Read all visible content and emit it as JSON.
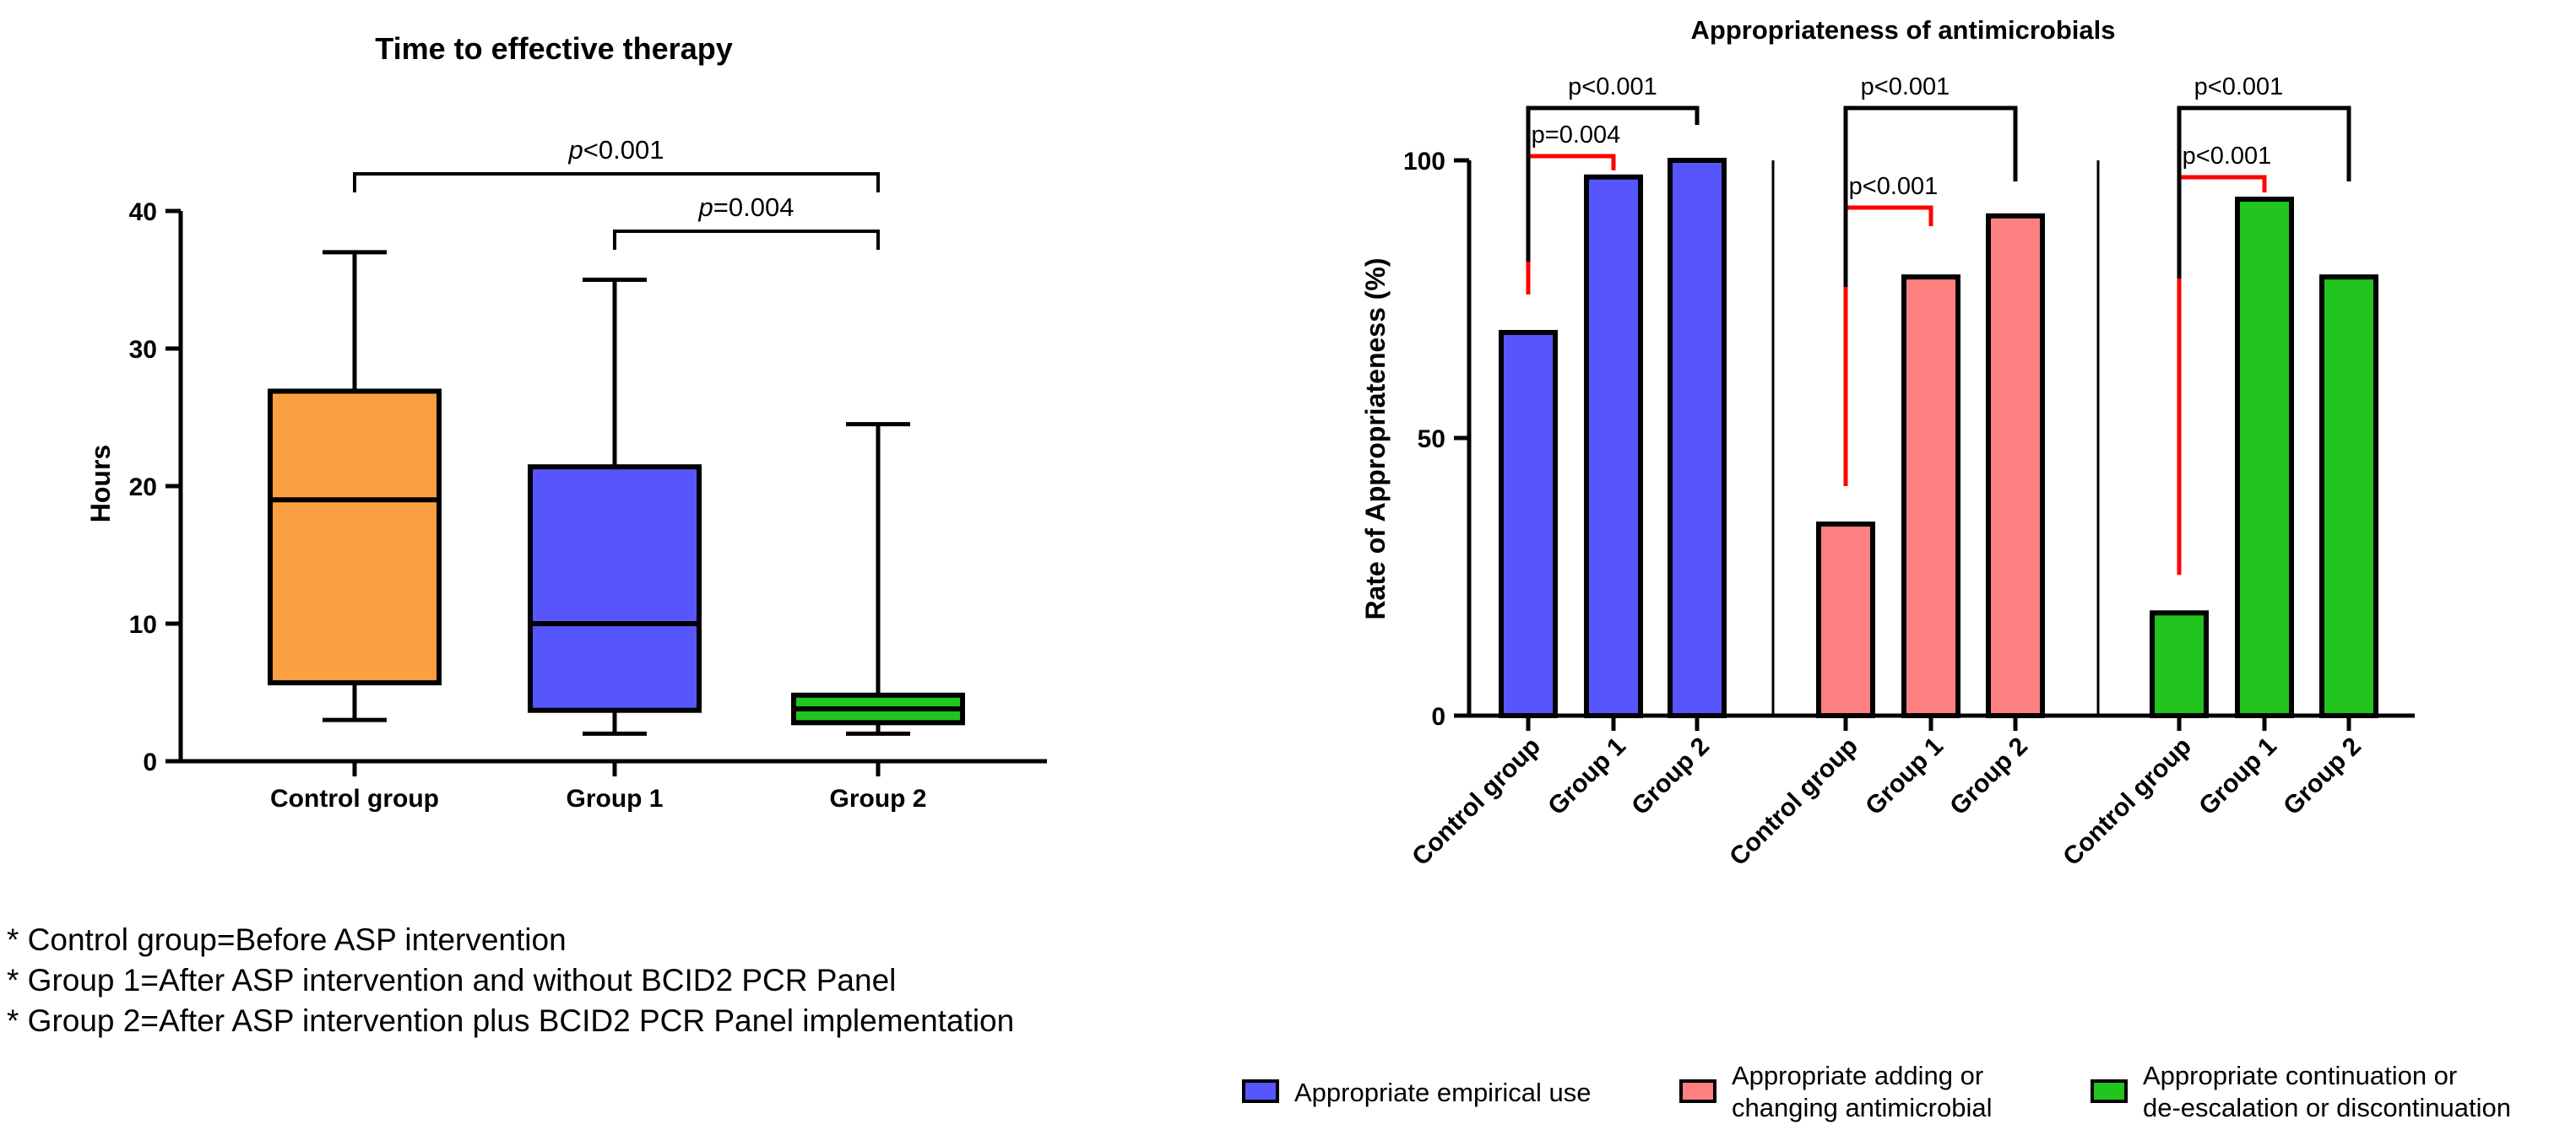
{
  "chart_data": [
    {
      "type": "box",
      "title": "Time to effective therapy",
      "xlabel": "",
      "ylabel": "Hours",
      "ylim": [
        0,
        40
      ],
      "yticks": [
        "0",
        "10",
        "20",
        "30",
        "40"
      ],
      "ytick_values": [
        0,
        10,
        20,
        30,
        40
      ],
      "categories": [
        "Control group",
        "Group 1",
        "Group 2"
      ],
      "boxes": [
        {
          "name": "Control group",
          "min": 3,
          "q1": 5.7,
          "median": 19,
          "q3": 26.9,
          "max": 37,
          "color": "#FBA040"
        },
        {
          "name": "Group 1",
          "min": 2,
          "q1": 3.7,
          "median": 10,
          "q3": 21.4,
          "max": 35,
          "color": "#5756FD"
        },
        {
          "name": "Group 2",
          "min": 2,
          "q1": 2.8,
          "median": 3.8,
          "q3": 4.8,
          "max": 24.5,
          "color": "#22C41E"
        }
      ],
      "comparisons": [
        {
          "from": 0,
          "to": 2,
          "p_symbol": "p",
          "p_value": "<0.001",
          "color": "#000000",
          "level": 2
        },
        {
          "from": 1,
          "to": 2,
          "p_symbol": "p",
          "p_value": "=0.004",
          "color": "#000000",
          "level": 1
        }
      ]
    },
    {
      "type": "bar",
      "title": "Appropriateness of antimicrobials",
      "xlabel": "",
      "ylabel": "Rate of Appropriateness (%)",
      "ylim": [
        0,
        100
      ],
      "yticks": [
        "0",
        "50",
        "100"
      ],
      "ytick_values": [
        0,
        50,
        100
      ],
      "categories": [
        "Control group",
        "Group 1",
        "Group 2"
      ],
      "series": [
        {
          "name": "Appropriate empirical use",
          "color": "#5756FD",
          "values": [
            69,
            97,
            100
          ]
        },
        {
          "name": "Appropriate adding or changing antimicrobial",
          "color": "#FF8080",
          "values": [
            34.5,
            79,
            90
          ]
        },
        {
          "name": "Appropriate continuation or de-escalation or discontinuation",
          "color": "#22C41E",
          "values": [
            18.5,
            93,
            79
          ]
        }
      ],
      "comparisons": [
        {
          "group": 0,
          "from": 0,
          "to": 1,
          "label": "p=0.004",
          "color": "#FF0000",
          "level": 1
        },
        {
          "group": 0,
          "from": 0,
          "to": 2,
          "label": "p<0.001",
          "color": "#000000",
          "level": 2
        },
        {
          "group": 1,
          "from": 0,
          "to": 1,
          "label": "p<0.001",
          "color": "#FF0000",
          "level": 1
        },
        {
          "group": 1,
          "from": 0,
          "to": 2,
          "label": "p<0.001",
          "color": "#000000",
          "level": 2
        },
        {
          "group": 2,
          "from": 0,
          "to": 1,
          "label": "p<0.001",
          "color": "#FF0000",
          "level": 1
        },
        {
          "group": 2,
          "from": 0,
          "to": 2,
          "label": "p<0.001",
          "color": "#000000",
          "level": 2
        }
      ],
      "legend": [
        {
          "lines": [
            "Appropriate empirical use"
          ],
          "color": "#5756FD"
        },
        {
          "lines": [
            "Appropriate adding or",
            "changing antimicrobial"
          ],
          "color": "#FF8080"
        },
        {
          "lines": [
            "Appropriate continuation or",
            "de-escalation or discontinuation"
          ],
          "color": "#22C41E"
        }
      ],
      "legend_placement": "bottom"
    }
  ],
  "footnotes": [
    "* Control group=Before ASP intervention",
    "* Group 1=After ASP intervention and without BCID2 PCR Panel",
    "* Group 2=After ASP intervention plus BCID2 PCR Panel implementation"
  ]
}
